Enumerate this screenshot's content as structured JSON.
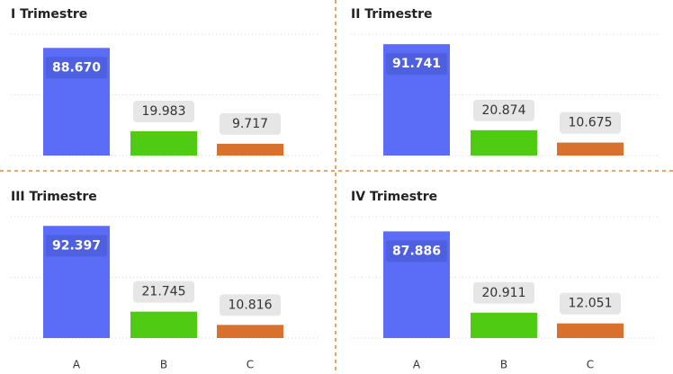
{
  "chart_data": [
    {
      "type": "bar",
      "title": "I Trimestre",
      "categories": [
        null,
        null,
        null
      ],
      "values": [
        88670,
        19983,
        9717
      ],
      "value_labels": [
        "88.670",
        "19.983",
        "9.717"
      ],
      "colors": [
        "#5b6cf6",
        "#4ecb12",
        "#d8702e"
      ],
      "ylim": [
        0,
        100000
      ],
      "yticks": [
        0,
        50000,
        100000
      ],
      "grid": true
    },
    {
      "type": "bar",
      "title": "II Trimestre",
      "categories": [
        null,
        null,
        null
      ],
      "values": [
        91741,
        20874,
        10675
      ],
      "value_labels": [
        "91.741",
        "20.874",
        "10.675"
      ],
      "colors": [
        "#5b6cf6",
        "#4ecb12",
        "#d8702e"
      ],
      "ylim": [
        0,
        100000
      ],
      "yticks": [
        0,
        50000,
        100000
      ],
      "grid": true
    },
    {
      "type": "bar",
      "title": "III Trimestre",
      "categories": [
        "A",
        "B",
        "C"
      ],
      "values": [
        92397,
        21745,
        10816
      ],
      "value_labels": [
        "92.397",
        "21.745",
        "10.816"
      ],
      "colors": [
        "#5b6cf6",
        "#4ecb12",
        "#d8702e"
      ],
      "ylim": [
        0,
        100000
      ],
      "yticks": [
        0,
        50000,
        100000
      ],
      "grid": true
    },
    {
      "type": "bar",
      "title": "IV Trimestre",
      "categories": [
        "A",
        "B",
        "C"
      ],
      "values": [
        87886,
        20911,
        12051
      ],
      "value_labels": [
        "87.886",
        "20.911",
        "12.051"
      ],
      "colors": [
        "#5b6cf6",
        "#4ecb12",
        "#d8702e"
      ],
      "ylim": [
        0,
        100000
      ],
      "yticks": [
        0,
        50000,
        100000
      ],
      "grid": true
    }
  ]
}
